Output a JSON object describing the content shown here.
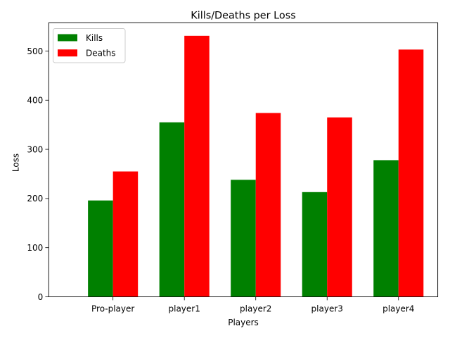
{
  "chart_data": {
    "type": "bar",
    "title": "Kills/Deaths per Loss",
    "xlabel": "Players",
    "ylabel": "Loss",
    "categories": [
      "Pro-player",
      "player1",
      "player2",
      "player3",
      "player4"
    ],
    "series": [
      {
        "name": "Kills",
        "color": "#008000",
        "values": [
          196,
          355,
          238,
          213,
          278
        ]
      },
      {
        "name": "Deaths",
        "color": "#ff0000",
        "values": [
          255,
          531,
          374,
          365,
          503
        ]
      }
    ],
    "ylim": [
      0,
      557.55
    ],
    "yticks": [
      0,
      100,
      200,
      300,
      400,
      500
    ],
    "grid": false,
    "legend_position": "top-left"
  }
}
